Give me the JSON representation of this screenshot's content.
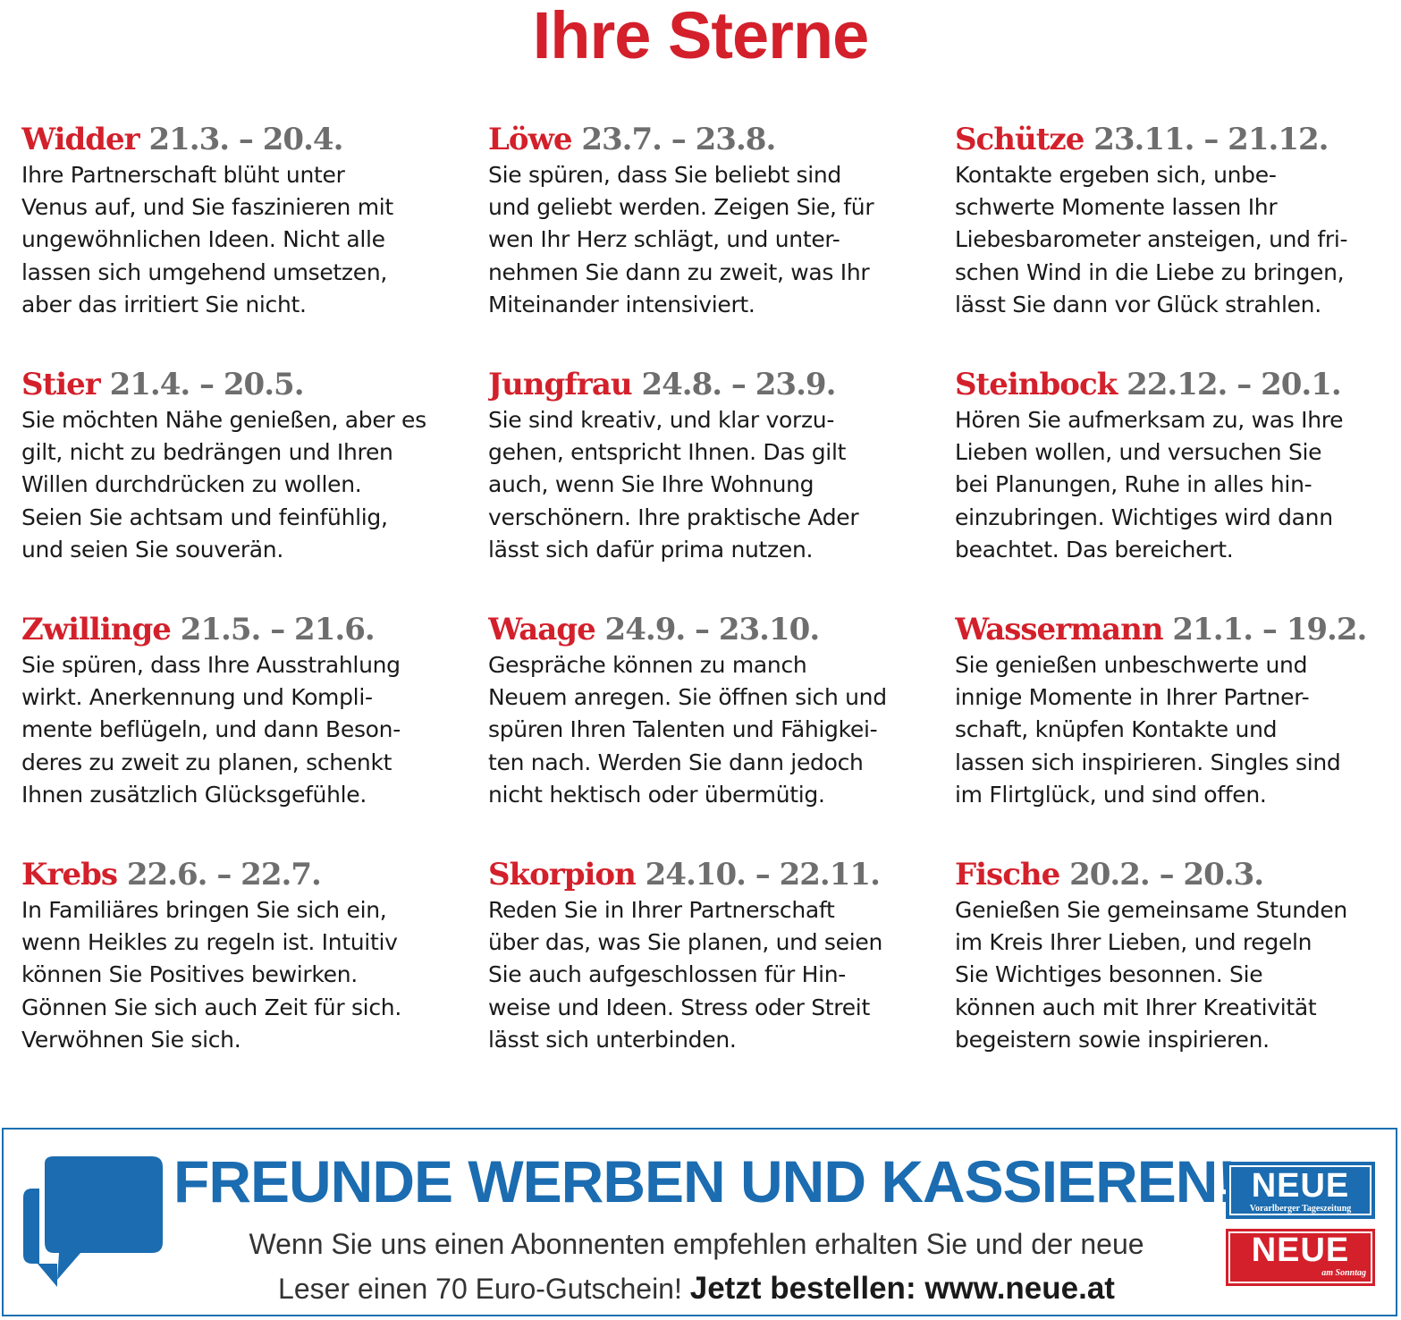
{
  "title": "Ihre Sterne",
  "signs": [
    {
      "name": "Widder",
      "dates": "21.3. – 20.4.",
      "text": "Ihre Partnerschaft blüht unter\nVenus auf, und Sie faszinieren mit\nungewöhnlichen Ideen. Nicht alle\nlassen sich umgehend umsetzen,\naber das irritiert Sie nicht."
    },
    {
      "name": "Löwe",
      "dates": "23.7. – 23.8.",
      "text": "Sie spüren, dass Sie beliebt sind\nund geliebt werden. Zeigen Sie, für\nwen Ihr Herz schlägt, und unter-\nnehmen Sie dann zu zweit, was Ihr\nMiteinander intensiviert."
    },
    {
      "name": "Schütze",
      "dates": "23.11. – 21.12.",
      "text": "Kontakte ergeben sich, unbe-\nschwerte Momente lassen Ihr\nLiebesbarometer ansteigen, und fri-\nschen Wind in die Liebe zu bringen,\nlässt Sie dann vor Glück strahlen."
    },
    {
      "name": "Stier",
      "dates": "21.4. – 20.5.",
      "text": "Sie möchten Nähe genießen, aber es\ngilt, nicht zu bedrängen und Ihren\nWillen durchdrücken zu wollen.\nSeien Sie achtsam und feinfühlig,\nund seien Sie souverän."
    },
    {
      "name": "Jungfrau",
      "dates": "24.8. – 23.9.",
      "text": "Sie sind kreativ, und klar vorzu-\ngehen, entspricht Ihnen. Das gilt\nauch, wenn Sie Ihre Wohnung\nverschönern. Ihre praktische Ader\nlässt sich dafür prima nutzen."
    },
    {
      "name": "Steinbock",
      "dates": "22.12. – 20.1.",
      "text": "Hören Sie aufmerksam zu, was Ihre\nLieben wollen, und versuchen Sie\nbei Planungen, Ruhe in alles hin-\neinzubringen. Wichtiges wird dann\nbeachtet. Das bereichert."
    },
    {
      "name": "Zwillinge",
      "dates": "21.5. – 21.6.",
      "text": "Sie spüren, dass Ihre Ausstrahlung\nwirkt. Anerkennung und Kompli-\nmente beflügeln, und dann Beson-\nderes zu zweit zu planen, schenkt\nIhnen zusätzlich Glücksgefühle."
    },
    {
      "name": "Waage",
      "dates": "24.9. – 23.10.",
      "text": "Gespräche können zu manch\nNeuem anregen. Sie öffnen sich und\nspüren Ihren Talenten und Fähigkei-\nten nach. Werden Sie dann jedoch\nnicht hektisch oder übermütig."
    },
    {
      "name": "Wassermann",
      "dates": "21.1. – 19.2.",
      "text": "Sie genießen unbeschwerte und\ninnige Momente in Ihrer Partner-\nschaft, knüpfen Kontakte und\nlassen sich inspirieren. Singles sind\nim Flirtglück, und sind offen."
    },
    {
      "name": "Krebs",
      "dates": "22.6. – 22.7.",
      "text": "In Familiäres bringen Sie sich ein,\nwenn Heikles zu regeln ist. Intuitiv\nkönnen Sie Positives bewirken.\nGönnen Sie sich auch Zeit für sich.\nVerwöhnen Sie sich."
    },
    {
      "name": "Skorpion",
      "dates": "24.10. – 22.11.",
      "text": "Reden Sie in Ihrer Partnerschaft\nüber das, was Sie planen, und seien\nSie auch aufgeschlossen für Hin-\nweise und Ideen. Stress oder Streit\nlässt sich unterbinden."
    },
    {
      "name": "Fische",
      "dates": "20.2. – 20.3.",
      "text": "Genießen Sie gemeinsame Stunden\nim Kreis Ihrer Lieben, und regeln\nSie Wichtiges besonnen. Sie\nkönnen auch mit Ihrer Kreativität\nbegeistern sowie inspirieren."
    }
  ],
  "promo": {
    "headline": "FREUNDE WERBEN UND KASSIEREN!",
    "line1": "Wenn Sie uns einen Abonnenten empfehlen erhalten Sie und der neue",
    "line2": "Leser einen 70 Euro-Gutschein!",
    "cta": "Jetzt bestellen: www.neue.at",
    "icon": "chat-bubbles-icon",
    "logos": [
      {
        "name": "NEUE",
        "sub": "Vorarlberger Tageszeitung",
        "color": "#1b6cb0"
      },
      {
        "name": "NEUE",
        "sub": "am Sonntag",
        "color": "#d3202b"
      }
    ]
  },
  "colors": {
    "accent_red": "#d3202b",
    "accent_blue": "#1b6cb0",
    "date_gray": "#6e6e6e"
  }
}
